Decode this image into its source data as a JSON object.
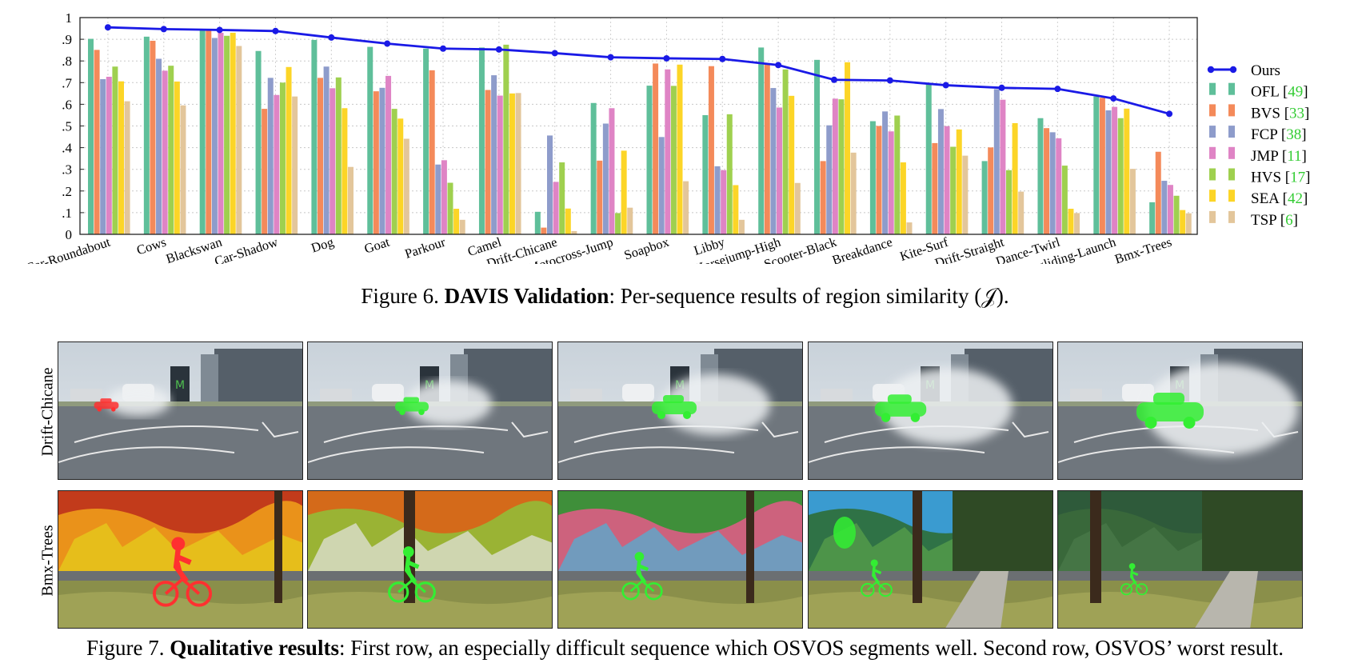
{
  "chart_data": {
    "type": "bar",
    "categories": [
      "Car-Roundabout",
      "Cows",
      "Blackswan",
      "Car-Shadow",
      "Dog",
      "Goat",
      "Parkour",
      "Camel",
      "Drift-Chicane",
      "Motocross-Jump",
      "Soapbox",
      "Libby",
      "Horsejump-High",
      "Scooter-Black",
      "Breakdance",
      "Kite-Surf",
      "Drift-Straight",
      "Dance-Twirl",
      "Paragliding-Launch",
      "Bmx-Trees"
    ],
    "ylim": [
      0,
      1
    ],
    "yticks": [
      "0",
      ".1",
      ".2",
      ".3",
      ".4",
      ".5",
      ".6",
      ".7",
      ".8",
      ".9",
      "1"
    ],
    "grid": true,
    "legend_position": "right",
    "line_series": {
      "name": "Ours",
      "color": "#1a1ae6",
      "values": [
        0.955,
        0.947,
        0.943,
        0.938,
        0.908,
        0.88,
        0.857,
        0.853,
        0.836,
        0.817,
        0.812,
        0.809,
        0.781,
        0.713,
        0.71,
        0.688,
        0.676,
        0.671,
        0.627,
        0.556
      ]
    },
    "series": [
      {
        "name": "OFL",
        "ref": "49",
        "color": "#5fbf9a",
        "values": [
          0.902,
          0.912,
          0.943,
          0.846,
          0.897,
          0.865,
          0.857,
          0.862,
          0.104,
          0.606,
          0.686,
          0.55,
          0.862,
          0.805,
          0.522,
          0.692,
          0.338,
          0.536,
          0.636,
          0.148
        ]
      },
      {
        "name": "BVS",
        "ref": "33",
        "color": "#f48a5a",
        "values": [
          0.851,
          0.893,
          0.943,
          0.579,
          0.722,
          0.66,
          0.757,
          0.666,
          0.031,
          0.34,
          0.788,
          0.776,
          0.787,
          0.338,
          0.5,
          0.421,
          0.401,
          0.49,
          0.63,
          0.381
        ]
      },
      {
        "name": "FCP",
        "ref": "38",
        "color": "#8e9ccb",
        "values": [
          0.716,
          0.81,
          0.906,
          0.722,
          0.774,
          0.676,
          0.322,
          0.734,
          0.456,
          0.511,
          0.449,
          0.314,
          0.675,
          0.503,
          0.567,
          0.578,
          0.67,
          0.471,
          0.572,
          0.247
        ]
      },
      {
        "name": "JMP",
        "ref": "11",
        "color": "#df84c5",
        "values": [
          0.727,
          0.755,
          0.93,
          0.643,
          0.674,
          0.731,
          0.342,
          0.64,
          0.242,
          0.582,
          0.761,
          0.296,
          0.585,
          0.626,
          0.475,
          0.499,
          0.621,
          0.443,
          0.588,
          0.228
        ]
      },
      {
        "name": "HVS",
        "ref": "17",
        "color": "#9fd04f",
        "values": [
          0.774,
          0.778,
          0.916,
          0.7,
          0.724,
          0.579,
          0.238,
          0.875,
          0.332,
          0.098,
          0.685,
          0.554,
          0.761,
          0.623,
          0.548,
          0.404,
          0.296,
          0.317,
          0.536,
          0.178
        ]
      },
      {
        "name": "SEA",
        "ref": "42",
        "color": "#fcd527",
        "values": [
          0.706,
          0.705,
          0.93,
          0.772,
          0.582,
          0.534,
          0.118,
          0.65,
          0.119,
          0.386,
          0.783,
          0.227,
          0.639,
          0.794,
          0.332,
          0.484,
          0.513,
          0.118,
          0.58,
          0.112
        ]
      },
      {
        "name": "TSP",
        "ref": "6",
        "color": "#e3c69b",
        "values": [
          0.614,
          0.595,
          0.869,
          0.636,
          0.311,
          0.441,
          0.067,
          0.652,
          0.015,
          0.123,
          0.245,
          0.067,
          0.237,
          0.377,
          0.055,
          0.363,
          0.197,
          0.098,
          0.302,
          0.097
        ]
      }
    ]
  },
  "fig6_caption": {
    "prefix": "Figure 6. ",
    "bold": "DAVIS Validation",
    "rest": ": Per-sequence results of region similarity (𝒥)."
  },
  "fig7_caption": {
    "prefix": "Figure 7. ",
    "bold": "Qualitative results",
    "rest": ": First row, an especially difficult sequence which OSVOS segments well. Second row, OSVOS’ worst result."
  },
  "qualitative": {
    "rows": [
      {
        "label": "Drift-Chicane",
        "scene": "drift"
      },
      {
        "label": "Bmx-Trees",
        "scene": "bmx"
      }
    ],
    "mask_colors": {
      "ground_truth": "#ff3030",
      "result": "#33ee33"
    }
  }
}
